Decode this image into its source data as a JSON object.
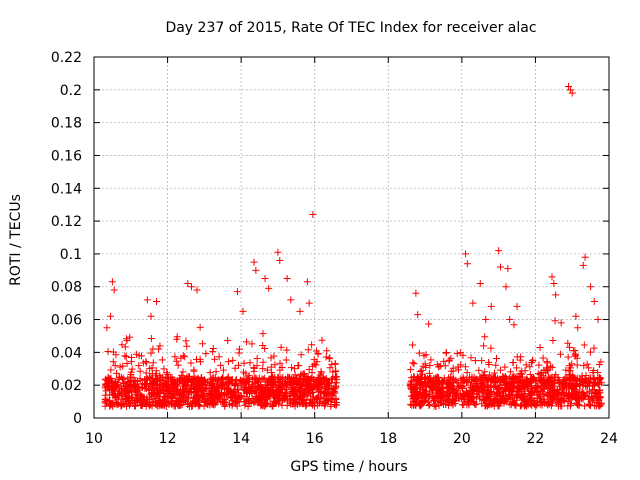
{
  "chart_data": {
    "type": "scatter",
    "title": "Day 237 of 2015, Rate Of TEC Index for receiver alac",
    "xlabel": "GPS time / hours",
    "ylabel": "ROTI / TECUs",
    "xlim": [
      10,
      24
    ],
    "ylim": [
      0,
      0.22
    ],
    "xticks": [
      10,
      12,
      14,
      16,
      18,
      20,
      22,
      24
    ],
    "xtick_labels": [
      "10",
      "12",
      "14",
      "16",
      "18",
      "20",
      "22",
      "24"
    ],
    "yticks": [
      0,
      0.02,
      0.04,
      0.06,
      0.08,
      0.1,
      0.12,
      0.14,
      0.16,
      0.18,
      0.2,
      0.22
    ],
    "ytick_labels": [
      "0",
      "0.02",
      "0.04",
      "0.06",
      "0.08",
      "0.1",
      "0.12",
      "0.14",
      "0.16",
      "0.18",
      "0.2",
      "0.22"
    ],
    "grid": true,
    "marker": "+",
    "series_color": "#ff0000",
    "data_windows": [
      {
        "start": 10.3,
        "end": 16.6
      },
      {
        "start": 18.6,
        "end": 23.8
      }
    ],
    "series": [
      {
        "name": "ROTI",
        "points": [
          [
            10.5,
            0.083
          ],
          [
            10.55,
            0.078
          ],
          [
            10.45,
            0.062
          ],
          [
            10.35,
            0.055
          ],
          [
            11.45,
            0.072
          ],
          [
            11.7,
            0.071
          ],
          [
            11.55,
            0.062
          ],
          [
            12.25,
            0.048
          ],
          [
            12.5,
            0.047
          ],
          [
            12.55,
            0.082
          ],
          [
            12.65,
            0.08
          ],
          [
            12.8,
            0.078
          ],
          [
            13.9,
            0.077
          ],
          [
            14.05,
            0.065
          ],
          [
            14.35,
            0.095
          ],
          [
            14.4,
            0.09
          ],
          [
            14.65,
            0.085
          ],
          [
            14.75,
            0.079
          ],
          [
            15.0,
            0.101
          ],
          [
            15.05,
            0.096
          ],
          [
            15.25,
            0.085
          ],
          [
            15.35,
            0.072
          ],
          [
            15.8,
            0.083
          ],
          [
            15.85,
            0.07
          ],
          [
            15.95,
            0.124
          ],
          [
            15.6,
            0.065
          ],
          [
            18.75,
            0.076
          ],
          [
            18.8,
            0.063
          ],
          [
            20.1,
            0.1
          ],
          [
            20.15,
            0.094
          ],
          [
            20.3,
            0.07
          ],
          [
            20.5,
            0.082
          ],
          [
            20.65,
            0.06
          ],
          [
            20.8,
            0.068
          ],
          [
            21.0,
            0.102
          ],
          [
            21.05,
            0.092
          ],
          [
            21.25,
            0.091
          ],
          [
            21.2,
            0.08
          ],
          [
            21.5,
            0.068
          ],
          [
            21.3,
            0.06
          ],
          [
            22.45,
            0.086
          ],
          [
            22.5,
            0.082
          ],
          [
            22.55,
            0.075
          ],
          [
            22.9,
            0.202
          ],
          [
            22.95,
            0.2
          ],
          [
            23.0,
            0.198
          ],
          [
            23.35,
            0.098
          ],
          [
            23.3,
            0.093
          ],
          [
            23.5,
            0.08
          ],
          [
            23.6,
            0.071
          ],
          [
            23.1,
            0.062
          ],
          [
            23.7,
            0.06
          ],
          [
            23.15,
            0.055
          ],
          [
            22.7,
            0.058
          ]
        ]
      }
    ]
  }
}
